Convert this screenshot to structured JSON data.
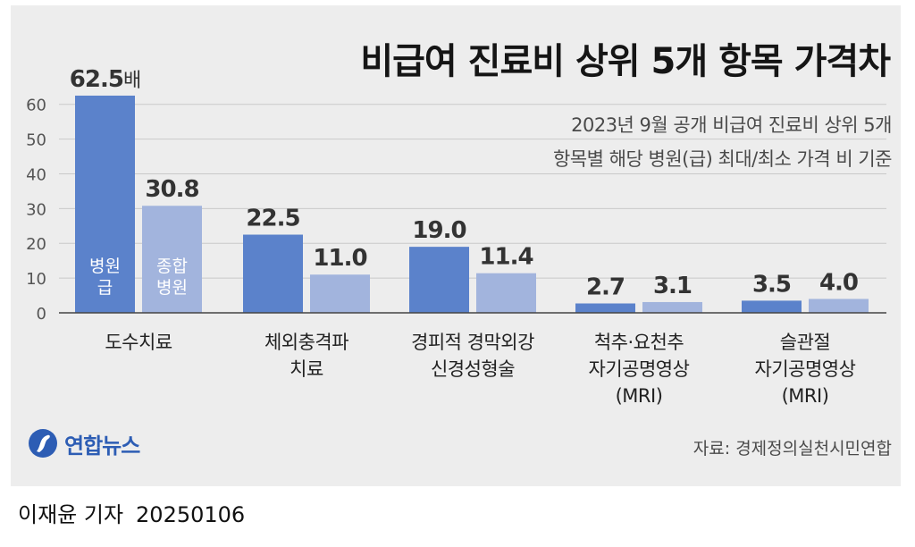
{
  "header": {
    "title": "비급여 진료비 상위 5개 항목 가격차",
    "subtitle_line1": "2023년 9월 공개 비급여 진료비 상위 5개",
    "subtitle_line2": "항목별 해당 병원(급) 최대/최소 가격 비 기준"
  },
  "chart_data": {
    "type": "bar",
    "title": "비급여 진료비 상위 5개 항목 가격차",
    "categories": [
      [
        "도수치료"
      ],
      [
        "체외충격파",
        "치료"
      ],
      [
        "경피적 경막외강",
        "신경성형술"
      ],
      [
        "척추·요천추",
        "자기공명영상",
        "(MRI)"
      ],
      [
        "슬관절",
        "자기공명영상",
        "(MRI)"
      ]
    ],
    "series": [
      {
        "name": "병원급",
        "legend": [
          "병원",
          "급"
        ],
        "color": "#5b82cb",
        "values": [
          62.5,
          22.5,
          19.0,
          2.7,
          3.5
        ],
        "labels": [
          "62.5",
          "22.5",
          "19.0",
          "2.7",
          "3.5"
        ]
      },
      {
        "name": "종합병원",
        "legend": [
          "종합",
          "병원"
        ],
        "color": "#a2b4dd",
        "values": [
          30.8,
          11.0,
          11.4,
          3.1,
          4.0
        ],
        "labels": [
          "30.8",
          "11.0",
          "11.4",
          "3.1",
          "4.0"
        ]
      }
    ],
    "value_suffix_first": "배",
    "y_ticks": [
      0,
      10,
      20,
      30,
      40,
      50,
      60
    ],
    "ylim": [
      0,
      62.5
    ],
    "xlabel": "",
    "ylabel": "",
    "grid": true
  },
  "footer": {
    "logo_text": "연합뉴스",
    "source": "자료: 경제정의실천시민연합",
    "reporter": "이재윤 기자",
    "date": "20250106"
  },
  "colors": {
    "primary": "#5b82cb",
    "secondary": "#a2b4dd",
    "background": "#ededed",
    "logo": "#2d5db4"
  }
}
